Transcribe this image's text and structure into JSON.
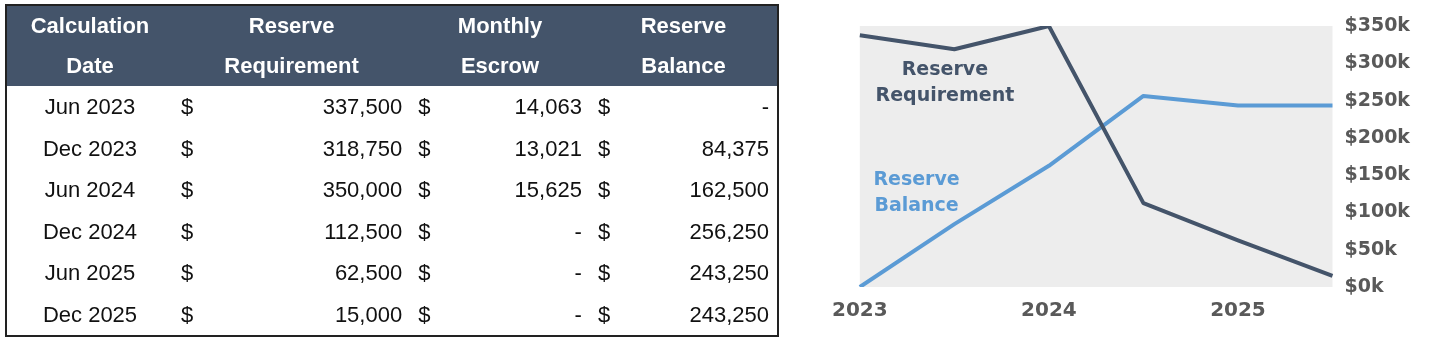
{
  "chart_data": [
    {
      "type": "other",
      "xlabel": "Calculation Date",
      "categories": [
        "Jun 2023",
        "Dec 2023",
        "Jun 2024",
        "Dec 2024",
        "Jun 2025",
        "Dec 2025"
      ],
      "series": [
        {
          "name": "Reserve Requirement",
          "values": [
            337500,
            318750,
            350000,
            112500,
            62500,
            15000
          ],
          "value_labels": [
            "$ 337,500",
            "$ 318,750",
            "$ 350,000",
            "$ 112,500",
            "$ 62,500",
            "$ 15,000"
          ]
        },
        {
          "name": "Monthly Escrow",
          "values": [
            14063,
            13021,
            15625,
            null,
            null,
            null
          ],
          "value_labels": [
            "$ 14,063",
            "$ 13,021",
            "$ 15,625",
            "$ -",
            "$ -",
            "$ -"
          ]
        },
        {
          "name": "Reserve Balance",
          "values": [
            null,
            84375,
            162500,
            256250,
            243250,
            243250
          ],
          "value_labels": [
            "$ -",
            "$ 84,375",
            "$ 162,500",
            "$ 256,250",
            "$ 243,250",
            "$ 243,250"
          ]
        }
      ]
    },
    {
      "type": "line",
      "categories": [
        "2023",
        null,
        "2024",
        null,
        "2025",
        null
      ],
      "ylim": [
        0,
        350000
      ],
      "yticks": [
        {
          "value": 0,
          "label": "$0k"
        },
        {
          "value": 50000,
          "label": "$50k"
        },
        {
          "value": 100000,
          "label": "$100k"
        },
        {
          "value": 150000,
          "label": "$150k"
        },
        {
          "value": 200000,
          "label": "$200k"
        },
        {
          "value": 250000,
          "label": "$250k"
        },
        {
          "value": 300000,
          "label": "$300k"
        },
        {
          "value": 350000,
          "label": "$350k"
        }
      ],
      "grid": false,
      "legend": false,
      "marker": "none",
      "series": [
        {
          "name": "Reserve Requirement",
          "color": "#44546a",
          "values": [
            337500,
            318750,
            350000,
            112500,
            62500,
            15000
          ]
        },
        {
          "name": "Reserve Balance",
          "color": "#5b9bd5",
          "values": [
            0,
            84375,
            162500,
            256250,
            243250,
            243250
          ]
        }
      ]
    }
  ]
}
